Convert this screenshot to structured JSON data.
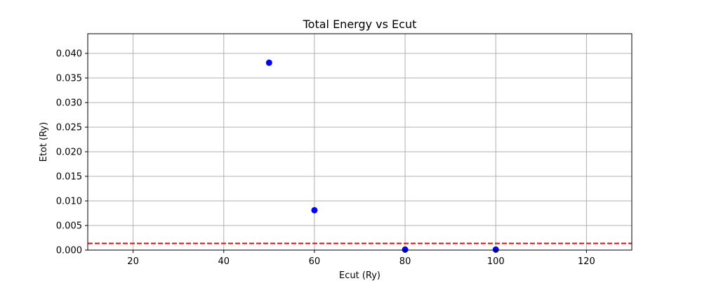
{
  "chart_data": {
    "type": "scatter",
    "title": "Total Energy vs Ecut",
    "xlabel": "Ecut (Ry)",
    "ylabel": "Etot (Ry)",
    "xlim": [
      10,
      130
    ],
    "ylim": [
      0,
      0.044
    ],
    "xticks": [
      20,
      40,
      60,
      80,
      100,
      120
    ],
    "yticks": [
      0.0,
      0.005,
      0.01,
      0.015,
      0.02,
      0.025,
      0.03,
      0.035,
      0.04
    ],
    "xtick_labels": [
      "20",
      "40",
      "60",
      "80",
      "100",
      "120"
    ],
    "ytick_labels": [
      "0.000",
      "0.005",
      "0.010",
      "0.015",
      "0.020",
      "0.025",
      "0.030",
      "0.035",
      "0.040"
    ],
    "grid": true,
    "series": [
      {
        "color": "#0000ff",
        "points": [
          {
            "x": 50,
            "y": 0.0381
          },
          {
            "x": 60,
            "y": 0.0081
          },
          {
            "x": 80,
            "y": 0.0001
          },
          {
            "x": 100,
            "y": 0.0001
          }
        ]
      }
    ],
    "reference_lines": [
      {
        "orientation": "horizontal",
        "y": 0.00136,
        "color": "#ff0000",
        "style": "dashed"
      }
    ]
  }
}
